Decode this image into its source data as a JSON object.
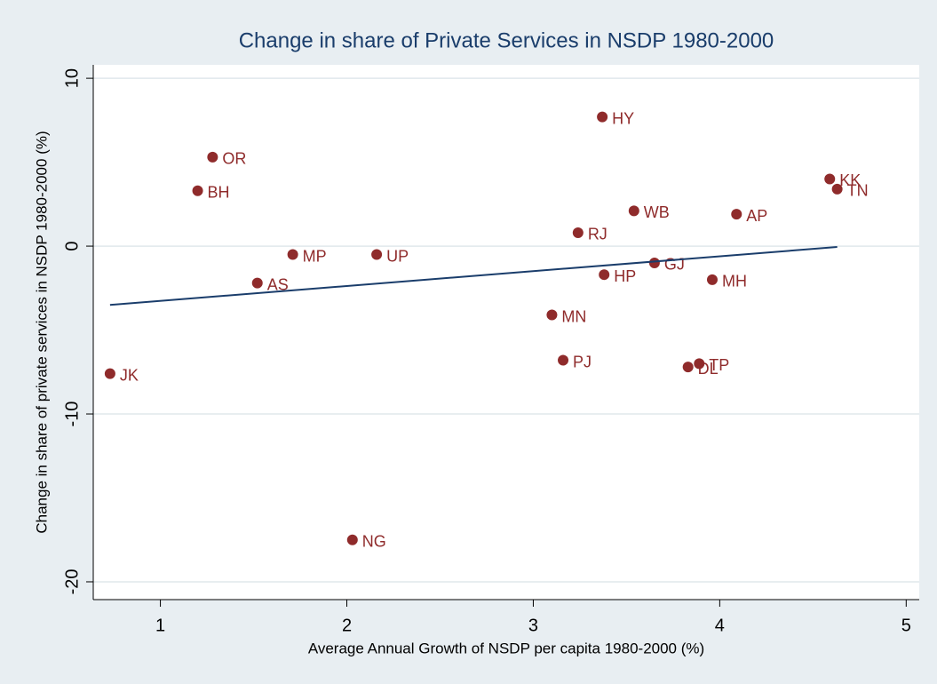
{
  "chart_data": {
    "type": "scatter",
    "title": "Change in share of Private Services in NSDP 1980-2000",
    "xlabel": "Average Annual Growth of NSDP per capita 1980-2000 (%)",
    "ylabel": "Change in share of private services in NSDP 1980-2000 (%)",
    "labels": [
      "JK",
      "OR",
      "BH",
      "AS",
      "MP",
      "UP",
      "NG",
      "HY",
      "RJ",
      "WB",
      "HP",
      "GJ",
      "MN",
      "PJ",
      "DL",
      "TP",
      "MH",
      "AP",
      "KK",
      "TN"
    ],
    "x": [
      0.73,
      1.28,
      1.2,
      1.52,
      1.71,
      2.16,
      2.03,
      3.37,
      3.24,
      3.54,
      3.38,
      3.65,
      3.1,
      3.16,
      3.83,
      3.89,
      3.96,
      4.09,
      4.59,
      4.63
    ],
    "values": [
      -7.6,
      5.3,
      3.3,
      -2.2,
      -0.5,
      -0.5,
      -17.5,
      7.7,
      0.8,
      2.1,
      -1.7,
      -1.0,
      -4.1,
      -6.8,
      -7.2,
      -7.0,
      -2.0,
      1.9,
      4.0,
      3.4
    ],
    "color": "#8f2b2b",
    "fit_line": {
      "x": [
        0.73,
        4.63
      ],
      "y": [
        -3.5,
        -0.05
      ],
      "color": "#1a3d6b"
    },
    "xlim": [
      0.64,
      5.07
    ],
    "ylim": [
      -21.06,
      10.8
    ],
    "xticks": [
      1,
      2,
      3,
      4,
      5
    ],
    "yticks": [
      10,
      0,
      -10,
      -20
    ],
    "grid": true
  }
}
